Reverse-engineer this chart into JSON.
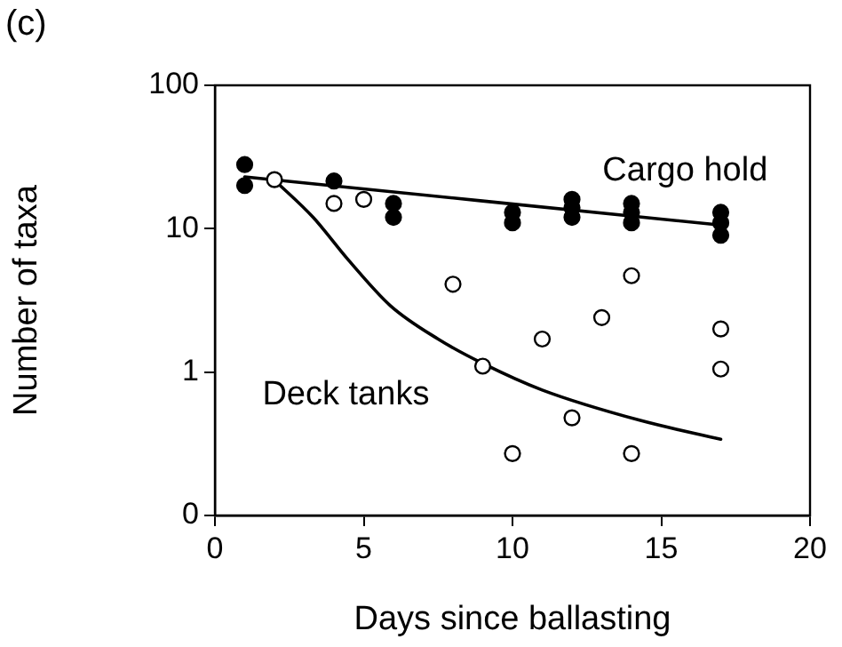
{
  "chart_data": {
    "type": "scatter",
    "title": "(c)",
    "xlabel": "Days since ballasting",
    "ylabel": "Number of taxa",
    "xlim": [
      0,
      20
    ],
    "xticks": [
      0,
      5,
      10,
      15,
      20
    ],
    "log": "y",
    "ylim": [
      0.1,
      100
    ],
    "yticks": [
      {
        "value": 0.1,
        "label": "0"
      },
      1,
      10,
      100
    ],
    "grid": false,
    "legend": false,
    "marker": "circle",
    "series": [
      {
        "name": "Cargo hold",
        "color": "#000000",
        "x": [
          1,
          1,
          4,
          6,
          6,
          10,
          10,
          12,
          12,
          12,
          14,
          14,
          14,
          17,
          17,
          17
        ],
        "values": [
          28,
          20,
          21.5,
          15,
          12,
          13,
          11,
          16,
          14,
          12,
          15,
          13,
          11,
          13,
          11,
          9
        ]
      },
      {
        "type": "line",
        "color": "#000000",
        "marker": "none",
        "x": [
          1,
          17
        ],
        "values": [
          23,
          10.6
        ]
      },
      {
        "name": "Deck tanks",
        "color": "#000000",
        "x": [
          2,
          4,
          5,
          8,
          9,
          10,
          11,
          12,
          13,
          14,
          14,
          17,
          17
        ],
        "values": [
          22,
          15,
          16,
          4.1,
          1.1,
          0.27,
          1.7,
          0.48,
          2.4,
          4.7,
          0.27,
          2,
          1.05
        ]
      },
      {
        "type": "line",
        "color": "#000000",
        "marker": "none",
        "x": [
          2,
          3.3,
          4.5,
          5.9,
          7.5,
          9,
          11,
          14.3,
          17
        ],
        "values": [
          21.8,
          12,
          6,
          2.9,
          1.7,
          1.15,
          0.75,
          0.46,
          0.34
        ]
      }
    ]
  }
}
